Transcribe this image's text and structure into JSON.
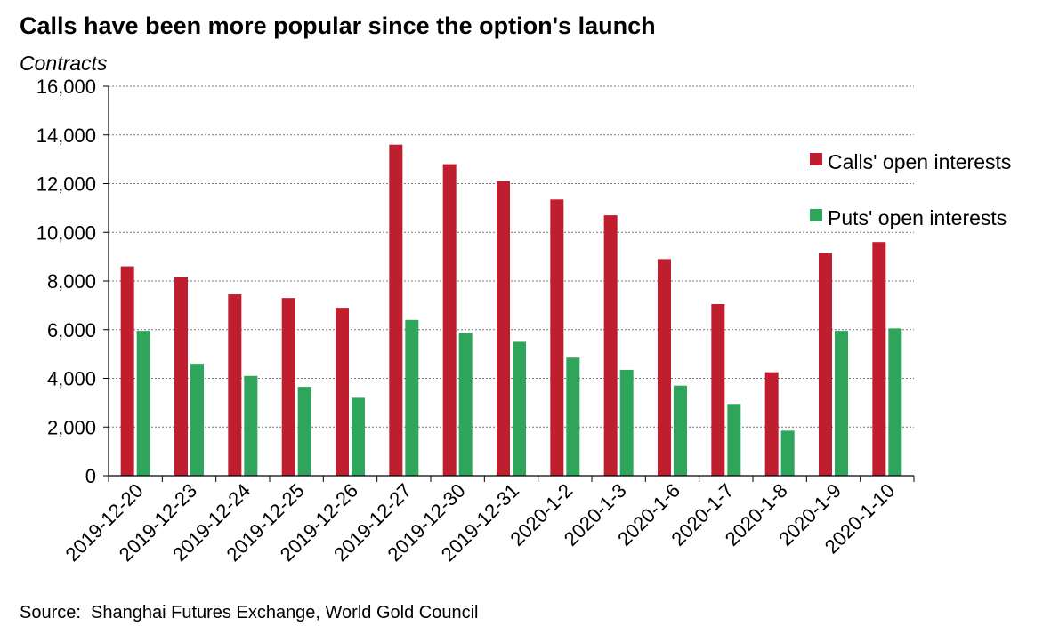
{
  "chart_data": {
    "type": "bar",
    "title": "Calls have been more popular since the option's launch",
    "ylabel": "Contracts",
    "xlabel": "",
    "ylim": [
      0,
      16000
    ],
    "yticks": [
      0,
      2000,
      4000,
      6000,
      8000,
      10000,
      12000,
      14000,
      16000
    ],
    "ytick_labels": [
      "0",
      "2,000",
      "4,000",
      "6,000",
      "8,000",
      "10,000",
      "12,000",
      "14,000",
      "16,000"
    ],
    "grid": true,
    "legend_position": "right",
    "categories": [
      "2019-12-20",
      "2019-12-23",
      "2019-12-24",
      "2019-12-25",
      "2019-12-26",
      "2019-12-27",
      "2019-12-30",
      "2019-12-31",
      "2020-1-2",
      "2020-1-3",
      "2020-1-6",
      "2020-1-7",
      "2020-1-8",
      "2020-1-9",
      "2020-1-10"
    ],
    "series": [
      {
        "name": "Calls' open interests",
        "color": "#BE1E2D",
        "values": [
          8600,
          8150,
          7450,
          7300,
          6900,
          13600,
          12800,
          12100,
          11350,
          10700,
          8900,
          7050,
          4250,
          9150,
          9600
        ]
      },
      {
        "name": "Puts' open interests",
        "color": "#2FA55B",
        "values": [
          5950,
          4600,
          4100,
          3650,
          3200,
          6400,
          5850,
          5500,
          4850,
          4350,
          3700,
          2950,
          1850,
          5950,
          6050
        ]
      }
    ],
    "source": "Source:  Shanghai Futures Exchange, World Gold Council"
  }
}
